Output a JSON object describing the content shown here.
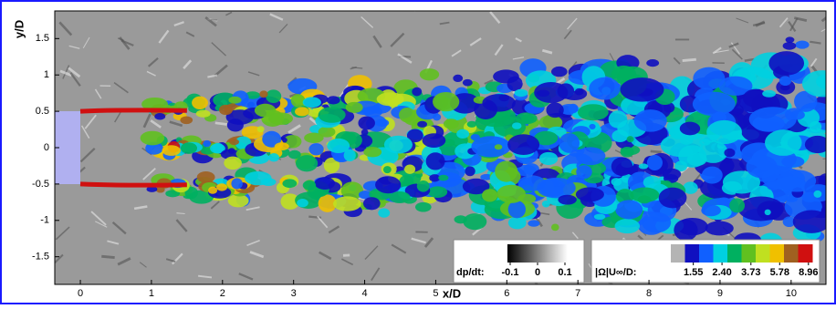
{
  "chart_data": {
    "type": "contour",
    "xlabel": "x/D",
    "ylabel": "y/D",
    "xlim": [
      -0.36,
      10.49
    ],
    "ylim": [
      -1.88,
      1.88
    ],
    "xticks": [
      0,
      1,
      2,
      3,
      4,
      5,
      6,
      7,
      8,
      9,
      10
    ],
    "yticks": [
      -1.5,
      -1,
      -0.5,
      0,
      0.5,
      1,
      1.5
    ],
    "colorbars": [
      {
        "label": "dp/dt:",
        "clim": [
          -0.11,
          0.11
        ],
        "ticks": [
          -0.1,
          0,
          0.1
        ],
        "colors": [
          "#000000",
          "#ffffff"
        ]
      },
      {
        "label": "|Ω|U∞/D:",
        "clim": [
          1.1,
          9.5
        ],
        "log": true,
        "ticks": [
          1.55,
          {
            "value": 2.4,
            "label": "2.40"
          },
          3.73,
          5.78,
          8.96
        ],
        "colors": [
          "#b4b4b4",
          "#1010c0",
          "#1060ff",
          "#00d0e0",
          "#00b060",
          "#60c020",
          "#c0e020",
          "#f0c000",
          "#a06020",
          "#d01010"
        ]
      }
    ]
  }
}
